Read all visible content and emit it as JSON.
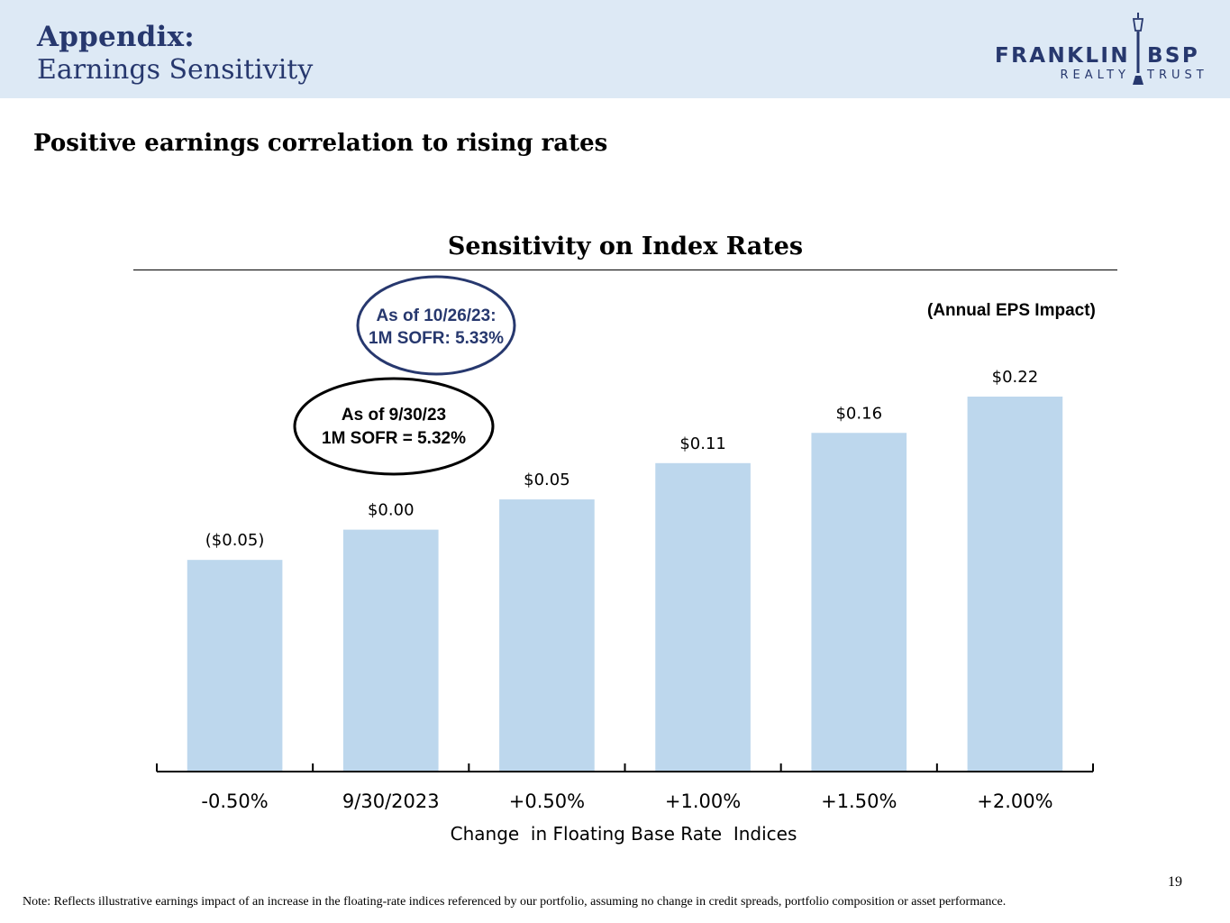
{
  "header": {
    "title": "Appendix:",
    "subtitle": "Earnings Sensitivity",
    "logo_top": "FRANKLIN",
    "logo_right": "BSP",
    "logo_sub_left": "REALTY",
    "logo_sub_right": "TRUST"
  },
  "headline": "Positive earnings correlation to rising rates",
  "callouts": {
    "current": {
      "line1": "As of 10/26/23:",
      "line2": "1M SOFR: 5.33%"
    },
    "quarter_end": {
      "line1": "As of 9/30/23",
      "line2": "1M SOFR = 5.32%"
    }
  },
  "chart_data": {
    "type": "bar",
    "title": "Sensitivity on Index Rates",
    "unit_label": "(Annual EPS Impact)",
    "xlabel": "Change  in Floating Base Rate  Indices",
    "ylabel": "",
    "categories": [
      "-0.50%",
      "9/30/2023",
      "+0.50%",
      "+1.00%",
      "+1.50%",
      "+2.00%"
    ],
    "values": [
      -0.05,
      0.0,
      0.05,
      0.11,
      0.16,
      0.22
    ],
    "data_labels": [
      "($0.05)",
      "$0.00",
      "$0.05",
      "$0.11",
      "$0.16",
      "$0.22"
    ],
    "ylim": [
      -0.4,
      0.22
    ],
    "grid": false,
    "bar_color": "#bdd7ed"
  },
  "footer": {
    "page_number": "19",
    "note": "Note: Reflects illustrative earnings impact of an increase in the floating-rate indices referenced by our portfolio, assuming no change in credit spreads, portfolio composition or asset performance."
  },
  "colors": {
    "navy": "#27386e",
    "header_bg": "#dde9f5",
    "bar": "#bdd7ed"
  }
}
